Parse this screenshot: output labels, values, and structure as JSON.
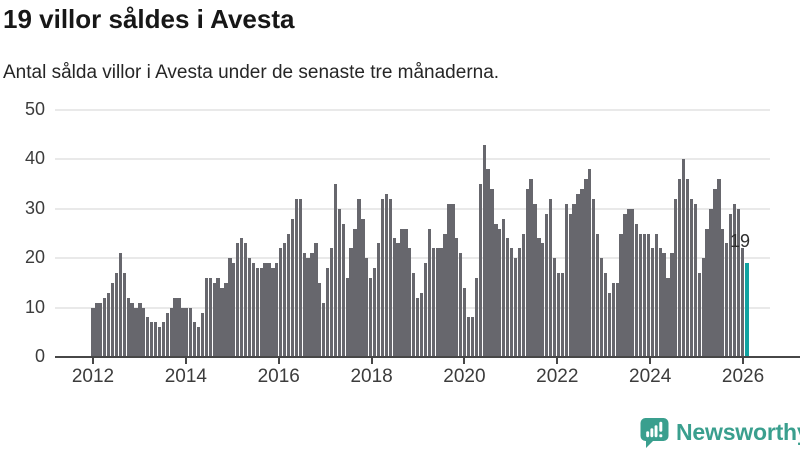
{
  "header": {
    "title": "19 villor såldes i Avesta",
    "subtitle": "Antal sålda villor i Avesta under de senaste tre månaderna."
  },
  "chart_data": {
    "type": "bar",
    "title": "19 villor såldes i Avesta",
    "subtitle": "Antal sålda villor i Avesta under de senaste tre månaderna.",
    "x_start_month": "2012-01",
    "x_interval": "monthly",
    "x_tick_labels": [
      "2012",
      "2014",
      "2016",
      "2018",
      "2020",
      "2022",
      "2024",
      "2026"
    ],
    "y_ticks": [
      0,
      10,
      20,
      30,
      40,
      50
    ],
    "ylim": [
      0,
      50
    ],
    "grid": true,
    "legend": "none",
    "bar_color": "#67676d",
    "values": [
      10,
      11,
      11,
      12,
      13,
      15,
      17,
      21,
      17,
      12,
      11,
      10,
      11,
      10,
      8,
      7,
      7,
      6,
      7,
      9,
      10,
      12,
      12,
      10,
      10,
      10,
      7,
      6,
      9,
      16,
      16,
      15,
      16,
      14,
      15,
      20,
      19,
      23,
      24,
      23,
      20,
      19,
      18,
      18,
      19,
      19,
      18,
      19,
      22,
      23,
      25,
      28,
      32,
      32,
      21,
      20,
      21,
      23,
      15,
      11,
      18,
      22,
      35,
      30,
      27,
      16,
      22,
      26,
      32,
      28,
      20,
      16,
      18,
      23,
      32,
      33,
      32,
      24,
      23,
      26,
      26,
      22,
      17,
      12,
      13,
      19,
      26,
      22,
      22,
      22,
      25,
      31,
      31,
      24,
      21,
      14,
      8,
      8,
      16,
      35,
      43,
      38,
      34,
      27,
      26,
      28,
      24,
      22,
      20,
      22,
      25,
      34,
      36,
      31,
      24,
      23,
      29,
      32,
      20,
      17,
      17,
      31,
      29,
      31,
      33,
      34,
      36,
      38,
      32,
      25,
      20,
      17,
      13,
      15,
      15,
      25,
      29,
      30,
      30,
      27,
      25,
      25,
      25,
      22,
      25,
      22,
      21,
      16,
      21,
      32,
      36,
      40,
      36,
      32,
      31,
      17,
      20,
      26,
      30,
      34,
      36,
      26,
      23,
      29,
      31,
      30,
      22,
      19
    ],
    "highlight": {
      "index": 167,
      "value": 19,
      "label": "19",
      "color": "#11a3a1"
    }
  },
  "footer": {
    "brand": "Newsworthy",
    "brand_color": "#3a9f8e",
    "logo_icon": "bar-chart-speech-bubble-icon"
  }
}
